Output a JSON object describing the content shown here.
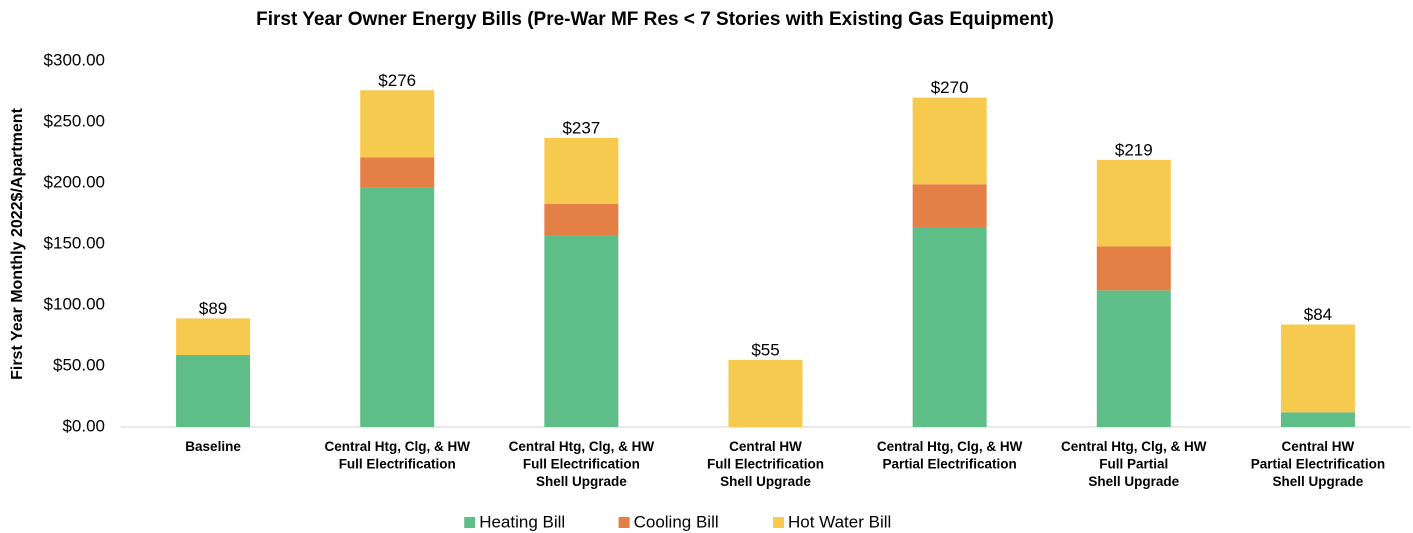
{
  "chart_data": {
    "type": "stacked_bar",
    "title": "First Year Owner Energy Bills (Pre-War MF Res < 7 Stories with Existing Gas Equipment)",
    "y_label": "First Year Monthly 2022$/Apartment",
    "categories": [
      [
        "Baseline"
      ],
      [
        "Central Htg, Clg, & HW",
        "Full Electrification"
      ],
      [
        "Central Htg, Clg, & HW",
        "Full Electrification",
        "Shell Upgrade"
      ],
      [
        "Central HW",
        "Full Electrification",
        "Shell Upgrade"
      ],
      [
        "Central Htg, Clg, & HW",
        "Partial Electrification"
      ],
      [
        "Central Htg, Clg, & HW",
        "Full Partial",
        "Shell Upgrade"
      ],
      [
        "Central HW",
        "Partial Electrification",
        "Shell Upgrade"
      ]
    ],
    "series": [
      {
        "name": "Heating Bill",
        "color": "#5fbe87",
        "values": [
          59,
          196,
          157,
          0,
          164,
          112,
          12
        ]
      },
      {
        "name": "Cooling Bill",
        "color": "#e47f45",
        "values": [
          0,
          25,
          26,
          0,
          35,
          36,
          0
        ]
      },
      {
        "name": "Hot Water Bill",
        "color": "#f6c94f",
        "values": [
          30,
          55,
          54,
          55,
          71,
          71,
          72
        ]
      }
    ],
    "totals": [
      89,
      276,
      237,
      55,
      270,
      219,
      84
    ],
    "total_labels": [
      "$89",
      "$276",
      "$237",
      "$55",
      "$270",
      "$219",
      "$84"
    ],
    "ylim": [
      0,
      300
    ],
    "yticks": [
      {
        "value": 0,
        "label": "$0.00"
      },
      {
        "value": 50,
        "label": "$50.00"
      },
      {
        "value": 100,
        "label": "$100.00"
      },
      {
        "value": 150,
        "label": "$150.00"
      },
      {
        "value": 200,
        "label": "$200.00"
      },
      {
        "value": 250,
        "label": "$250.00"
      },
      {
        "value": 300,
        "label": "$300.00"
      }
    ],
    "grid": false,
    "legend": "bottom"
  }
}
